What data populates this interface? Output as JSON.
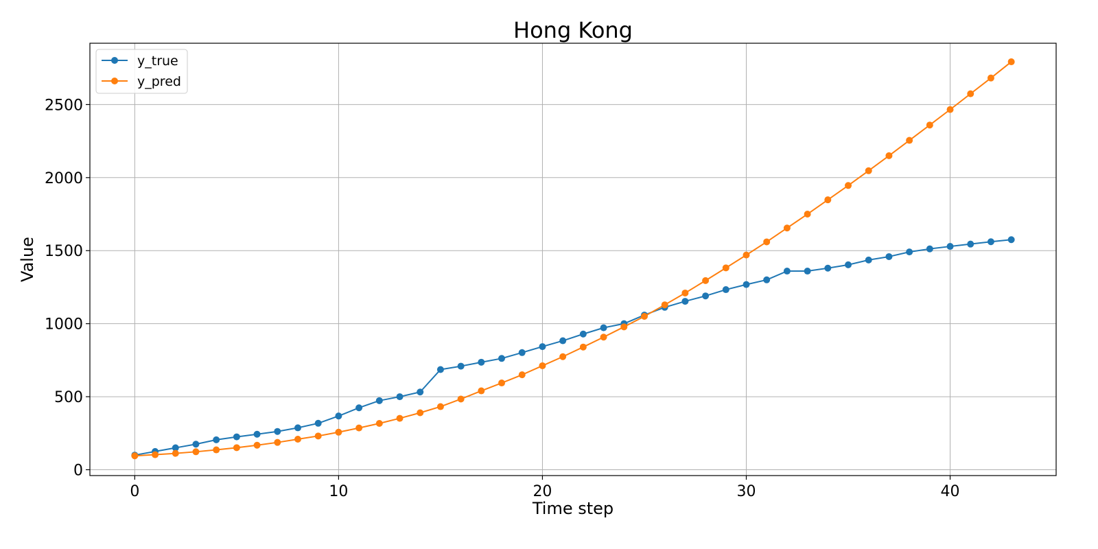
{
  "chart_data": {
    "type": "line",
    "title": "Hong Kong",
    "xlabel": "Time step",
    "ylabel": "Value",
    "xlim": [
      -2.2,
      45.2
    ],
    "ylim": [
      -40,
      2920
    ],
    "xticks": [
      0,
      10,
      20,
      30,
      40
    ],
    "yticks": [
      0,
      500,
      1000,
      1500,
      2000,
      2500
    ],
    "grid": true,
    "legend_position": "top-left",
    "x": [
      0,
      1,
      2,
      3,
      4,
      5,
      6,
      7,
      8,
      9,
      10,
      11,
      12,
      13,
      14,
      15,
      16,
      17,
      18,
      19,
      20,
      21,
      22,
      23,
      24,
      25,
      26,
      27,
      28,
      29,
      30,
      31,
      32,
      33,
      34,
      35,
      36,
      37,
      38,
      39,
      40,
      41,
      42,
      43
    ],
    "series": [
      {
        "name": "y_true",
        "color": "#1f77b4",
        "values": [
          100,
          125,
          150,
          175,
          205,
          225,
          243,
          262,
          287,
          318,
          368,
          424,
          473,
          500,
          532,
          686,
          709,
          736,
          762,
          802,
          843,
          883,
          929,
          972,
          1000,
          1059,
          1112,
          1153,
          1190,
          1233,
          1268,
          1300,
          1360,
          1360,
          1380,
          1403,
          1436,
          1459,
          1491,
          1512,
          1529,
          1545,
          1561,
          1575
        ]
      },
      {
        "name": "y_pred",
        "color": "#ff7f0e",
        "values": [
          95,
          103,
          112,
          123,
          136,
          151,
          168,
          187,
          209,
          231,
          257,
          286,
          317,
          352,
          390,
          432,
          484,
          540,
          594,
          650,
          712,
          774,
          840,
          908,
          978,
          1050,
          1129,
          1210,
          1295,
          1382,
          1470,
          1560,
          1655,
          1750,
          1848,
          1946,
          2047,
          2150,
          2255,
          2360,
          2466,
          2574,
          2682,
          2793
        ]
      }
    ]
  }
}
